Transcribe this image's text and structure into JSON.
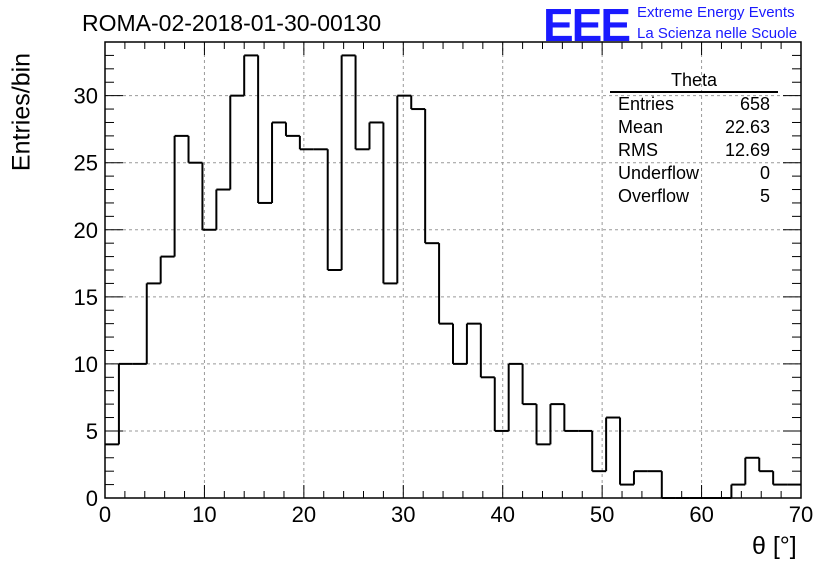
{
  "title": "ROMA-02-2018-01-30-00130",
  "logo": {
    "mark": "EEE",
    "line1": "Extreme Energy Events",
    "line2": "La Scienza nelle Scuole",
    "color": "#1a1aff"
  },
  "stats": {
    "title": "Theta",
    "rows": [
      {
        "label": "Entries",
        "value": "658"
      },
      {
        "label": "Mean",
        "value": "22.63"
      },
      {
        "label": "RMS",
        "value": "12.69"
      },
      {
        "label": "Underflow",
        "value": "0"
      },
      {
        "label": "Overflow",
        "value": "5"
      }
    ]
  },
  "chart_data": {
    "type": "bar",
    "histogram": true,
    "title": "ROMA-02-2018-01-30-00130",
    "xlabel": "θ [°]",
    "ylabel": "Entries/bin",
    "xlim": [
      0,
      70
    ],
    "ylim": [
      0,
      34
    ],
    "xticks": [
      0,
      10,
      20,
      30,
      40,
      50,
      60,
      70
    ],
    "yticks": [
      0,
      5,
      10,
      15,
      20,
      25,
      30
    ],
    "grid": true,
    "bin_edges": [
      0,
      1.4,
      2.8,
      4.2,
      5.6,
      7.0,
      8.4,
      9.8,
      11.2,
      12.6,
      14.0,
      15.4,
      16.8,
      18.2,
      19.6,
      21.0,
      22.4,
      23.8,
      25.2,
      26.6,
      28.0,
      29.4,
      30.8,
      32.2,
      33.6,
      35.0,
      36.4,
      37.8,
      39.2,
      40.6,
      42.0,
      43.4,
      44.8,
      46.2,
      47.6,
      49.0,
      50.4,
      51.8,
      53.2,
      54.6,
      56.0,
      57.4,
      58.8,
      60.2,
      61.6,
      63.0,
      64.4,
      65.8,
      67.2,
      68.6,
      70.0
    ],
    "values": [
      4,
      10,
      10,
      16,
      18,
      27,
      25,
      20,
      23,
      30,
      33,
      22,
      28,
      27,
      26,
      26,
      17,
      33,
      26,
      28,
      16,
      30,
      29,
      19,
      13,
      10,
      13,
      9,
      5,
      10,
      7,
      4,
      7,
      5,
      5,
      2,
      6,
      1,
      2,
      2,
      0,
      0,
      0,
      0,
      0,
      1,
      3,
      2,
      1,
      1
    ],
    "colors": {
      "line": "#000000",
      "grid": "#999999"
    }
  }
}
